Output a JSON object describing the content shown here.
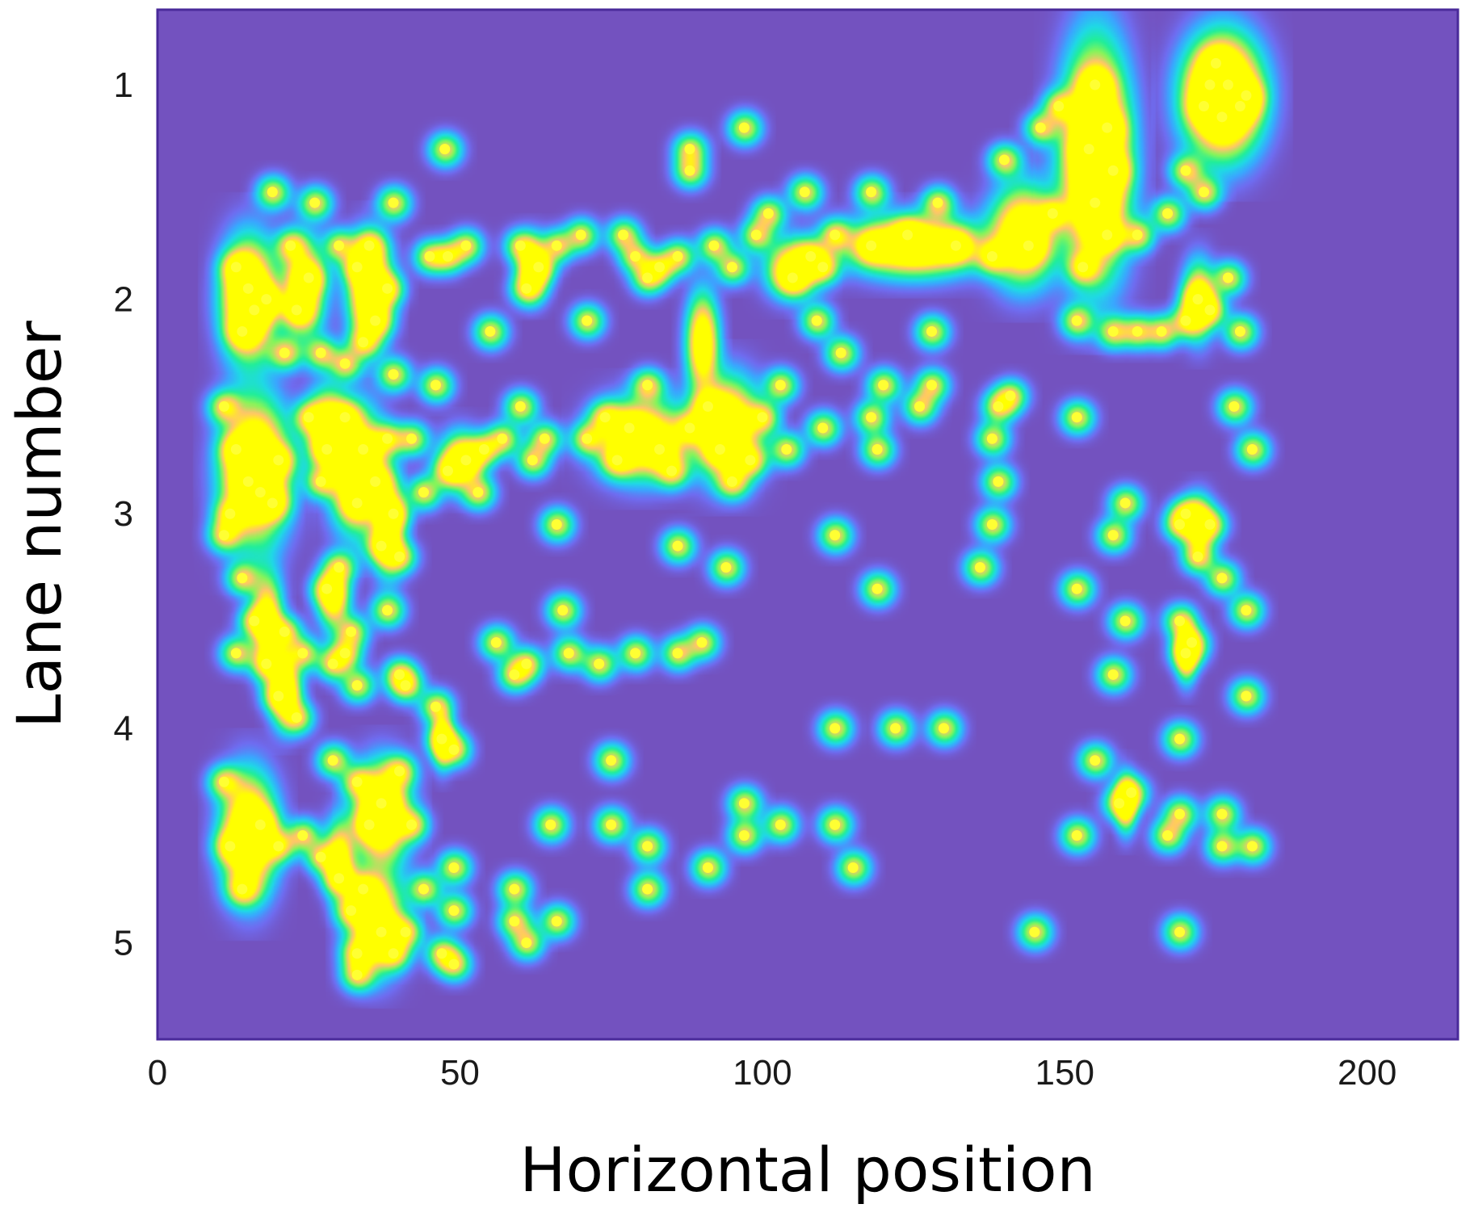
{
  "colors": {
    "background": "#7352bf",
    "frame": "#4a2a9a",
    "scale": [
      "#7352bf",
      "#6f6cf0",
      "#3aa6ff",
      "#1fd9e6",
      "#20ee9a",
      "#86f55a",
      "#ffc56a",
      "#ffff00"
    ],
    "point": "#ffff33"
  },
  "chart_data": {
    "type": "heatmap",
    "xlabel": "Horizontal position",
    "ylabel": "Lane number",
    "xlim": [
      0,
      215
    ],
    "ylim": [
      5.45,
      0.65
    ],
    "x_ticks": [
      0,
      50,
      100,
      150,
      200
    ],
    "y_ticks": [
      1,
      2,
      3,
      4,
      5
    ],
    "y_inverted": true,
    "grid": false,
    "legend": "none",
    "points": [
      [
        174,
        1.0
      ],
      [
        177,
        1.0
      ],
      [
        180,
        1.05
      ],
      [
        173,
        1.1
      ],
      [
        176,
        1.15
      ],
      [
        179,
        1.1
      ],
      [
        175,
        0.9
      ],
      [
        155,
        1.0
      ],
      [
        157,
        1.2
      ],
      [
        154,
        1.3
      ],
      [
        158,
        1.4
      ],
      [
        155,
        1.55
      ],
      [
        157,
        1.7
      ],
      [
        153,
        1.85
      ],
      [
        47.5,
        1.3
      ],
      [
        88,
        1.3
      ],
      [
        88,
        1.4
      ],
      [
        97,
        1.2
      ],
      [
        118,
        1.5
      ],
      [
        129,
        1.55
      ],
      [
        140,
        1.35
      ],
      [
        146,
        1.2
      ],
      [
        149,
        1.1
      ],
      [
        170,
        1.4
      ],
      [
        173,
        1.5
      ],
      [
        19,
        1.5
      ],
      [
        26,
        1.55
      ],
      [
        39,
        1.55
      ],
      [
        107,
        1.5
      ],
      [
        112,
        1.7
      ],
      [
        118,
        1.75
      ],
      [
        124,
        1.7
      ],
      [
        132,
        1.75
      ],
      [
        138,
        1.8
      ],
      [
        144,
        1.75
      ],
      [
        148,
        1.6
      ],
      [
        162,
        1.7
      ],
      [
        167,
        1.6
      ],
      [
        13,
        1.85
      ],
      [
        15,
        1.95
      ],
      [
        16,
        2.05
      ],
      [
        14,
        2.15
      ],
      [
        18,
        2.0
      ],
      [
        22,
        1.75
      ],
      [
        25,
        1.9
      ],
      [
        23,
        2.05
      ],
      [
        21,
        2.25
      ],
      [
        33,
        1.85
      ],
      [
        35,
        1.75
      ],
      [
        38,
        1.95
      ],
      [
        36,
        2.1
      ],
      [
        34,
        2.2
      ],
      [
        30,
        1.75
      ],
      [
        45,
        1.8
      ],
      [
        48,
        1.8
      ],
      [
        51,
        1.75
      ],
      [
        60,
        1.75
      ],
      [
        63,
        1.85
      ],
      [
        66,
        1.75
      ],
      [
        61,
        1.95
      ],
      [
        70,
        1.7
      ],
      [
        77,
        1.7
      ],
      [
        79,
        1.8
      ],
      [
        81,
        1.9
      ],
      [
        83,
        1.85
      ],
      [
        86,
        1.8
      ],
      [
        92,
        1.75
      ],
      [
        95,
        1.85
      ],
      [
        99,
        1.7
      ],
      [
        101,
        1.6
      ],
      [
        105,
        1.9
      ],
      [
        108,
        1.8
      ],
      [
        110,
        1.85
      ],
      [
        172,
        2.0
      ],
      [
        170,
        2.1
      ],
      [
        174,
        2.05
      ],
      [
        177,
        1.9
      ],
      [
        179,
        2.15
      ],
      [
        55,
        2.15
      ],
      [
        71,
        2.1
      ],
      [
        109,
        2.1
      ],
      [
        113,
        2.25
      ],
      [
        128,
        2.15
      ],
      [
        152,
        2.1
      ],
      [
        158,
        2.15
      ],
      [
        162,
        2.15
      ],
      [
        166,
        2.15
      ],
      [
        27,
        2.25
      ],
      [
        31,
        2.3
      ],
      [
        39,
        2.35
      ],
      [
        46,
        2.4
      ],
      [
        11,
        2.5
      ],
      [
        13,
        2.7
      ],
      [
        15,
        2.85
      ],
      [
        12,
        3.0
      ],
      [
        17,
        2.9
      ],
      [
        20,
        2.75
      ],
      [
        19,
        2.95
      ],
      [
        11,
        3.1
      ],
      [
        25,
        2.55
      ],
      [
        28,
        2.7
      ],
      [
        27,
        2.85
      ],
      [
        31,
        2.55
      ],
      [
        34,
        2.7
      ],
      [
        36,
        2.85
      ],
      [
        33,
        2.95
      ],
      [
        38,
        2.65
      ],
      [
        39,
        3.0
      ],
      [
        37,
        3.15
      ],
      [
        42,
        2.65
      ],
      [
        44,
        2.9
      ],
      [
        40,
        3.2
      ],
      [
        48,
        2.8
      ],
      [
        51,
        2.75
      ],
      [
        54,
        2.7
      ],
      [
        53,
        2.9
      ],
      [
        57,
        2.65
      ],
      [
        60,
        2.5
      ],
      [
        62,
        2.75
      ],
      [
        64,
        2.65
      ],
      [
        71,
        2.65
      ],
      [
        74,
        2.55
      ],
      [
        76,
        2.75
      ],
      [
        78,
        2.6
      ],
      [
        81,
        2.4
      ],
      [
        83,
        2.7
      ],
      [
        85,
        2.8
      ],
      [
        88,
        2.6
      ],
      [
        91,
        2.5
      ],
      [
        93,
        2.7
      ],
      [
        95,
        2.85
      ],
      [
        98,
        2.75
      ],
      [
        100,
        2.55
      ],
      [
        103,
        2.4
      ],
      [
        104,
        2.7
      ],
      [
        110,
        2.6
      ],
      [
        118,
        2.55
      ],
      [
        120,
        2.4
      ],
      [
        119,
        2.7
      ],
      [
        126,
        2.5
      ],
      [
        128,
        2.4
      ],
      [
        139,
        2.5
      ],
      [
        141,
        2.45
      ],
      [
        138,
        2.65
      ],
      [
        139,
        2.85
      ],
      [
        138,
        3.05
      ],
      [
        136,
        3.25
      ],
      [
        152,
        2.55
      ],
      [
        158,
        3.1
      ],
      [
        160,
        2.95
      ],
      [
        169,
        3.05
      ],
      [
        170,
        3.0
      ],
      [
        172,
        3.2
      ],
      [
        174,
        3.05
      ],
      [
        176,
        3.3
      ],
      [
        181,
        2.7
      ],
      [
        178,
        2.5
      ],
      [
        66,
        3.05
      ],
      [
        86,
        3.15
      ],
      [
        94,
        3.25
      ],
      [
        112,
        3.1
      ],
      [
        119,
        3.35
      ],
      [
        152,
        3.35
      ],
      [
        14,
        3.3
      ],
      [
        16,
        3.5
      ],
      [
        13,
        3.65
      ],
      [
        18,
        3.7
      ],
      [
        21,
        3.55
      ],
      [
        28,
        3.35
      ],
      [
        30,
        3.25
      ],
      [
        32,
        3.55
      ],
      [
        38,
        3.45
      ],
      [
        24,
        3.65
      ],
      [
        29,
        3.7
      ],
      [
        31,
        3.65
      ],
      [
        33,
        3.8
      ],
      [
        40,
        3.75
      ],
      [
        41,
        3.8
      ],
      [
        56,
        3.6
      ],
      [
        59,
        3.75
      ],
      [
        61,
        3.7
      ],
      [
        67,
        3.45
      ],
      [
        68,
        3.65
      ],
      [
        73,
        3.7
      ],
      [
        79,
        3.65
      ],
      [
        86,
        3.65
      ],
      [
        90,
        3.6
      ],
      [
        160,
        3.5
      ],
      [
        158,
        3.75
      ],
      [
        169,
        3.5
      ],
      [
        170,
        3.65
      ],
      [
        171,
        3.6
      ],
      [
        180,
        3.45
      ],
      [
        180,
        3.85
      ],
      [
        20,
        3.85
      ],
      [
        23,
        3.95
      ],
      [
        46,
        3.9
      ],
      [
        47,
        4.05
      ],
      [
        49,
        4.1
      ],
      [
        75,
        4.15
      ],
      [
        75,
        4.45
      ],
      [
        112,
        4.0
      ],
      [
        122,
        4.0
      ],
      [
        130,
        4.0
      ],
      [
        155,
        4.15
      ],
      [
        169,
        4.05
      ],
      [
        11,
        4.25
      ],
      [
        12,
        4.55
      ],
      [
        14,
        4.75
      ],
      [
        17,
        4.45
      ],
      [
        20,
        4.55
      ],
      [
        24,
        4.5
      ],
      [
        27,
        4.6
      ],
      [
        30,
        4.7
      ],
      [
        29,
        4.15
      ],
      [
        33,
        4.25
      ],
      [
        35,
        4.45
      ],
      [
        37,
        4.35
      ],
      [
        40,
        4.2
      ],
      [
        42,
        4.45
      ],
      [
        44,
        4.75
      ],
      [
        65,
        4.45
      ],
      [
        81,
        4.55
      ],
      [
        81,
        4.75
      ],
      [
        91,
        4.65
      ],
      [
        97,
        4.35
      ],
      [
        97,
        4.5
      ],
      [
        103,
        4.45
      ],
      [
        112,
        4.45
      ],
      [
        115,
        4.65
      ],
      [
        152,
        4.5
      ],
      [
        159,
        4.35
      ],
      [
        161,
        4.3
      ],
      [
        167,
        4.5
      ],
      [
        169,
        4.4
      ],
      [
        176,
        4.4
      ],
      [
        176,
        4.55
      ],
      [
        181,
        4.55
      ],
      [
        49,
        4.65
      ],
      [
        49,
        4.85
      ],
      [
        59,
        4.75
      ],
      [
        59,
        4.9
      ],
      [
        61,
        5.0
      ],
      [
        66,
        4.9
      ],
      [
        32,
        4.85
      ],
      [
        33,
        5.05
      ],
      [
        34,
        4.75
      ],
      [
        37,
        4.95
      ],
      [
        39,
        5.05
      ],
      [
        41,
        4.95
      ],
      [
        47,
        5.05
      ],
      [
        49,
        5.1
      ],
      [
        33,
        5.15
      ],
      [
        145,
        4.95
      ],
      [
        169,
        4.95
      ]
    ],
    "blobs": [
      [
        176,
        1.05,
        7,
        0.3,
        3
      ],
      [
        155,
        1.35,
        6,
        0.55,
        3
      ],
      [
        15,
        2.0,
        5,
        0.3,
        2.4
      ],
      [
        35,
        1.95,
        4,
        0.25,
        2.2
      ],
      [
        24,
        1.95,
        4,
        0.25,
        1.6
      ],
      [
        16,
        2.8,
        6,
        0.35,
        2.6
      ],
      [
        33,
        2.8,
        5,
        0.3,
        2.2
      ],
      [
        28,
        2.6,
        4,
        0.2,
        1.8
      ],
      [
        15,
        4.5,
        5,
        0.3,
        2.4
      ],
      [
        37,
        4.4,
        5,
        0.25,
        2.2
      ],
      [
        36,
        4.9,
        5,
        0.25,
        2.0
      ],
      [
        80,
        2.65,
        8,
        0.2,
        2.0
      ],
      [
        94,
        2.6,
        6,
        0.25,
        2.2
      ],
      [
        90,
        2.2,
        3,
        0.25,
        1.8
      ],
      [
        125,
        1.75,
        12,
        0.15,
        2.2
      ],
      [
        143,
        1.7,
        6,
        0.25,
        2.0
      ],
      [
        105,
        1.85,
        5,
        0.15,
        1.6
      ],
      [
        18,
        3.5,
        3,
        0.25,
        1.6
      ],
      [
        21,
        3.8,
        3,
        0.2,
        1.6
      ],
      [
        29,
        3.4,
        3,
        0.15,
        1.4
      ],
      [
        38,
        3.05,
        3,
        0.25,
        1.6
      ],
      [
        50,
        2.75,
        4,
        0.15,
        1.4
      ],
      [
        62,
        1.85,
        3,
        0.15,
        1.4
      ],
      [
        172,
        3.05,
        3,
        0.15,
        1.4
      ],
      [
        170,
        3.65,
        2,
        0.15,
        1.4
      ],
      [
        160,
        4.35,
        2,
        0.15,
        1.4
      ],
      [
        172,
        2.0,
        3,
        0.2,
        1.4
      ],
      [
        30,
        4.6,
        3,
        0.2,
        1.4
      ],
      [
        47,
        4.05,
        2,
        0.15,
        1.2
      ]
    ]
  }
}
